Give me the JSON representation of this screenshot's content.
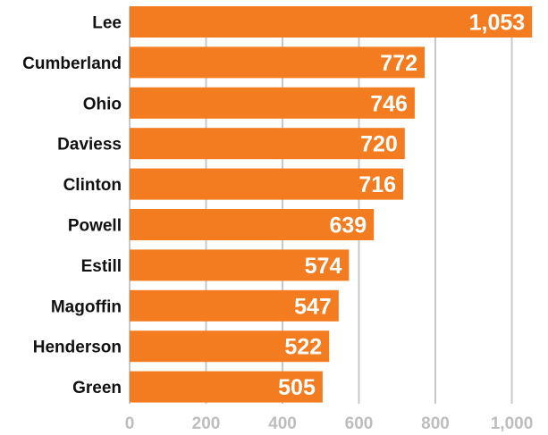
{
  "colors": {
    "bar": "#f47c20",
    "grid": "#c8c8c8",
    "tick_text": "#bdbdbd",
    "label_text": "#111111",
    "value_text": "#ffffff"
  },
  "chart_data": {
    "type": "bar",
    "orientation": "horizontal",
    "categories": [
      "Lee",
      "Cumberland",
      "Ohio",
      "Daviess",
      "Clinton",
      "Powell",
      "Estill",
      "Magoffin",
      "Henderson",
      "Green"
    ],
    "values": [
      1053,
      772,
      746,
      720,
      716,
      639,
      574,
      547,
      522,
      505
    ],
    "value_labels": [
      "1,053",
      "772",
      "746",
      "720",
      "716",
      "639",
      "574",
      "547",
      "522",
      "505"
    ],
    "xlim": [
      0,
      1053
    ],
    "xticks": [
      0,
      200,
      400,
      600,
      800,
      1000
    ],
    "xtick_labels": [
      "0",
      "200",
      "400",
      "600",
      "800",
      "1,000"
    ],
    "grid": true,
    "title": "",
    "xlabel": "",
    "ylabel": ""
  }
}
